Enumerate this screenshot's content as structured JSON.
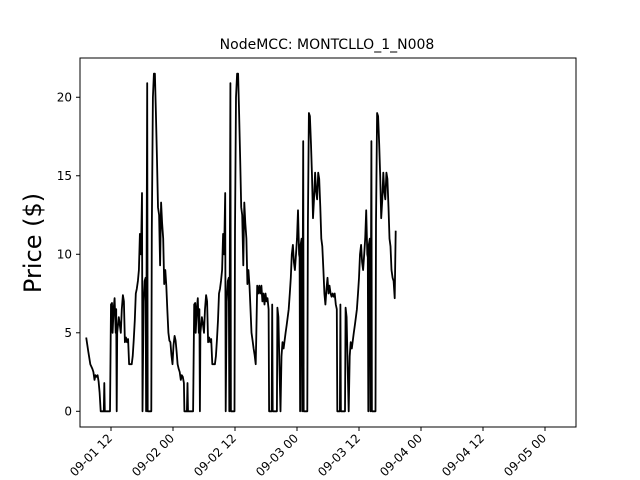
{
  "chart_data": {
    "type": "line",
    "title": "NodeMCC: MONTCLLO_1_N008",
    "xlabel": "",
    "ylabel": "Price ($)",
    "grid": false,
    "legend": "none",
    "line_color": "#000000",
    "xlim": [
      -6,
      90
    ],
    "ylim": [
      -1,
      22.5
    ],
    "x_ticks": [
      {
        "x": 0,
        "label": "09-01 12"
      },
      {
        "x": 12,
        "label": "09-02 00"
      },
      {
        "x": 24,
        "label": "09-02 12"
      },
      {
        "x": 36,
        "label": "09-03 00"
      },
      {
        "x": 48,
        "label": "09-03 12"
      },
      {
        "x": 60,
        "label": "09-04 00"
      },
      {
        "x": 72,
        "label": "09-04 12"
      },
      {
        "x": 84,
        "label": "09-05 00"
      }
    ],
    "y_ticks": [
      0,
      5,
      10,
      15,
      20
    ],
    "series": [
      {
        "points": [
          [
            -4.8,
            4.7
          ],
          [
            -4.4,
            3.8
          ],
          [
            -4.0,
            3.0
          ],
          [
            -3.6,
            2.7
          ],
          [
            -3.4,
            2.5
          ],
          [
            -3.2,
            2.0
          ],
          [
            -3.0,
            2.3
          ],
          [
            -2.8,
            2.2
          ],
          [
            -2.6,
            2.3
          ],
          [
            -2.4,
            1.9
          ],
          [
            -2.2,
            1.2
          ],
          [
            -2.0,
            0.0
          ],
          [
            -1.4,
            0.0
          ],
          [
            -1.3,
            1.8
          ],
          [
            -1.2,
            0.0
          ],
          [
            -0.2,
            0.0
          ],
          [
            0.0,
            6.8
          ],
          [
            0.2,
            6.9
          ],
          [
            0.3,
            5.0
          ],
          [
            0.5,
            6.5
          ],
          [
            0.7,
            7.2
          ],
          [
            0.9,
            5.0
          ],
          [
            1.0,
            6.5
          ],
          [
            1.1,
            0.0
          ],
          [
            1.2,
            5.0
          ],
          [
            1.5,
            6.0
          ],
          [
            1.7,
            5.5
          ],
          [
            1.9,
            5.0
          ],
          [
            2.1,
            6.5
          ],
          [
            2.3,
            7.4
          ],
          [
            2.5,
            7.0
          ],
          [
            2.7,
            4.4
          ],
          [
            2.9,
            4.7
          ],
          [
            3.1,
            4.4
          ],
          [
            3.3,
            4.6
          ],
          [
            3.5,
            3.0
          ],
          [
            4.0,
            3.0
          ],
          [
            4.2,
            3.5
          ],
          [
            4.4,
            4.5
          ],
          [
            4.6,
            5.8
          ],
          [
            4.8,
            7.5
          ],
          [
            5.0,
            7.8
          ],
          [
            5.2,
            8.3
          ],
          [
            5.4,
            9.0
          ],
          [
            5.6,
            11.3
          ],
          [
            5.8,
            10.0
          ],
          [
            6.0,
            13.9
          ],
          [
            6.1,
            0.0
          ],
          [
            6.3,
            7.0
          ],
          [
            6.5,
            8.3
          ],
          [
            6.7,
            8.5
          ],
          [
            6.8,
            0.0
          ],
          [
            7.0,
            20.9
          ],
          [
            7.1,
            0.0
          ],
          [
            7.8,
            0.0
          ],
          [
            7.9,
            11.5
          ],
          [
            8.1,
            20.0
          ],
          [
            8.3,
            21.5
          ],
          [
            8.5,
            21.5
          ],
          [
            8.7,
            19.0
          ],
          [
            8.9,
            16.0
          ],
          [
            9.1,
            13.0
          ],
          [
            9.3,
            12.5
          ],
          [
            9.5,
            9.3
          ],
          [
            9.7,
            13.3
          ],
          [
            9.9,
            12.0
          ],
          [
            10.1,
            11.0
          ],
          [
            10.3,
            8.1
          ],
          [
            10.5,
            9.0
          ],
          [
            10.7,
            8.0
          ],
          [
            10.9,
            6.5
          ],
          [
            11.1,
            5.0
          ],
          [
            11.3,
            4.5
          ],
          [
            11.5,
            4.4
          ],
          [
            11.7,
            3.6
          ],
          [
            11.9,
            3.0
          ],
          [
            12.1,
            4.2
          ],
          [
            12.3,
            4.8
          ],
          [
            12.5,
            4.5
          ],
          [
            12.7,
            3.8
          ],
          [
            12.9,
            3.0
          ],
          [
            13.1,
            2.7
          ],
          [
            13.3,
            2.5
          ],
          [
            13.5,
            2.0
          ],
          [
            13.7,
            2.3
          ],
          [
            13.9,
            2.2
          ],
          [
            14.1,
            1.8
          ],
          [
            14.2,
            0.0
          ],
          [
            14.7,
            0.0
          ],
          [
            14.8,
            1.8
          ],
          [
            14.9,
            0.0
          ],
          [
            15.9,
            0.0
          ],
          [
            16.1,
            6.8
          ],
          [
            16.3,
            6.9
          ],
          [
            16.4,
            5.0
          ],
          [
            16.6,
            6.5
          ],
          [
            16.8,
            7.2
          ],
          [
            17.0,
            5.0
          ],
          [
            17.1,
            6.5
          ],
          [
            17.2,
            0.0
          ],
          [
            17.3,
            5.0
          ],
          [
            17.6,
            6.0
          ],
          [
            17.8,
            5.5
          ],
          [
            18.0,
            5.0
          ],
          [
            18.2,
            6.5
          ],
          [
            18.4,
            7.4
          ],
          [
            18.6,
            7.0
          ],
          [
            18.8,
            4.4
          ],
          [
            19.0,
            4.7
          ],
          [
            19.2,
            4.4
          ],
          [
            19.4,
            4.6
          ],
          [
            19.6,
            3.0
          ],
          [
            20.1,
            3.0
          ],
          [
            20.3,
            3.5
          ],
          [
            20.5,
            4.5
          ],
          [
            20.7,
            5.8
          ],
          [
            20.9,
            7.5
          ],
          [
            21.1,
            7.8
          ],
          [
            21.3,
            8.3
          ],
          [
            21.5,
            9.0
          ],
          [
            21.7,
            11.3
          ],
          [
            21.9,
            10.0
          ],
          [
            22.1,
            13.9
          ],
          [
            22.2,
            0.0
          ],
          [
            22.4,
            7.0
          ],
          [
            22.6,
            8.3
          ],
          [
            22.8,
            8.5
          ],
          [
            22.9,
            0.0
          ],
          [
            23.1,
            20.9
          ],
          [
            23.2,
            0.0
          ],
          [
            23.9,
            0.0
          ],
          [
            24.0,
            11.5
          ],
          [
            24.2,
            20.0
          ],
          [
            24.4,
            21.5
          ],
          [
            24.6,
            21.5
          ],
          [
            24.8,
            19.0
          ],
          [
            25.0,
            16.0
          ],
          [
            25.2,
            13.0
          ],
          [
            25.4,
            12.5
          ],
          [
            25.6,
            9.3
          ],
          [
            25.8,
            13.3
          ],
          [
            26.0,
            12.0
          ],
          [
            26.2,
            11.0
          ],
          [
            26.4,
            8.1
          ],
          [
            26.6,
            9.0
          ],
          [
            26.8,
            8.0
          ],
          [
            27.0,
            6.5
          ],
          [
            27.2,
            5.0
          ],
          [
            27.4,
            4.5
          ],
          [
            27.6,
            4.0
          ],
          [
            27.8,
            3.6
          ],
          [
            28.0,
            3.0
          ],
          [
            28.1,
            4.5
          ],
          [
            28.3,
            8.0
          ],
          [
            28.5,
            7.5
          ],
          [
            28.7,
            8.0
          ],
          [
            28.9,
            7.5
          ],
          [
            29.1,
            8.0
          ],
          [
            29.3,
            7.0
          ],
          [
            29.5,
            7.5
          ],
          [
            29.7,
            6.8
          ],
          [
            29.9,
            7.5
          ],
          [
            30.1,
            7.0
          ],
          [
            30.3,
            7.2
          ],
          [
            30.5,
            6.5
          ],
          [
            30.6,
            0.0
          ],
          [
            31.1,
            0.0
          ],
          [
            31.2,
            6.8
          ],
          [
            31.3,
            0.0
          ],
          [
            32.1,
            0.0
          ],
          [
            32.2,
            6.6
          ],
          [
            32.4,
            6.0
          ],
          [
            32.6,
            3.0
          ],
          [
            32.8,
            0.0
          ],
          [
            33.0,
            3.5
          ],
          [
            33.2,
            4.4
          ],
          [
            33.4,
            4.0
          ],
          [
            33.6,
            4.5
          ],
          [
            33.8,
            5.0
          ],
          [
            34.0,
            5.5
          ],
          [
            34.2,
            6.0
          ],
          [
            34.4,
            6.5
          ],
          [
            34.6,
            7.5
          ],
          [
            34.8,
            8.5
          ],
          [
            35.0,
            10.0
          ],
          [
            35.2,
            10.6
          ],
          [
            35.4,
            9.5
          ],
          [
            35.6,
            9.0
          ],
          [
            35.8,
            10.0
          ],
          [
            36.0,
            11.0
          ],
          [
            36.2,
            12.8
          ],
          [
            36.4,
            10.0
          ],
          [
            36.5,
            9.8
          ],
          [
            36.6,
            0.0
          ],
          [
            36.7,
            10.6
          ],
          [
            36.9,
            11.0
          ],
          [
            37.0,
            0.0
          ],
          [
            37.2,
            17.2
          ],
          [
            37.3,
            0.0
          ],
          [
            38.0,
            0.0
          ],
          [
            38.1,
            12.0
          ],
          [
            38.3,
            19.0
          ],
          [
            38.5,
            18.8
          ],
          [
            38.7,
            17.0
          ],
          [
            38.9,
            15.0
          ],
          [
            39.1,
            12.3
          ],
          [
            39.3,
            13.5
          ],
          [
            39.5,
            15.2
          ],
          [
            39.7,
            14.0
          ],
          [
            39.9,
            13.5
          ],
          [
            40.1,
            15.2
          ],
          [
            40.3,
            14.8
          ],
          [
            40.5,
            13.0
          ],
          [
            40.7,
            11.0
          ],
          [
            40.9,
            10.5
          ],
          [
            41.1,
            9.0
          ],
          [
            41.3,
            7.5
          ],
          [
            41.5,
            6.8
          ],
          [
            41.7,
            7.8
          ],
          [
            41.9,
            8.5
          ],
          [
            42.1,
            7.5
          ],
          [
            42.3,
            8.0
          ],
          [
            42.5,
            7.5
          ],
          [
            42.7,
            7.3
          ],
          [
            42.9,
            7.5
          ],
          [
            43.1,
            7.3
          ],
          [
            43.3,
            7.5
          ],
          [
            43.5,
            6.8
          ],
          [
            43.7,
            6.5
          ],
          [
            43.8,
            0.0
          ],
          [
            44.3,
            0.0
          ],
          [
            44.4,
            6.8
          ],
          [
            44.5,
            0.0
          ],
          [
            45.3,
            0.0
          ],
          [
            45.4,
            6.6
          ],
          [
            45.6,
            6.0
          ],
          [
            45.8,
            3.0
          ],
          [
            46.0,
            0.0
          ],
          [
            46.2,
            3.5
          ],
          [
            46.4,
            4.4
          ],
          [
            46.6,
            4.0
          ],
          [
            46.8,
            4.5
          ],
          [
            47.0,
            5.0
          ],
          [
            47.2,
            5.5
          ],
          [
            47.4,
            6.0
          ],
          [
            47.6,
            6.5
          ],
          [
            47.8,
            7.5
          ],
          [
            48.0,
            8.5
          ],
          [
            48.2,
            10.0
          ],
          [
            48.4,
            10.6
          ],
          [
            48.6,
            9.5
          ],
          [
            48.8,
            9.0
          ],
          [
            49.0,
            10.0
          ],
          [
            49.2,
            11.0
          ],
          [
            49.4,
            12.8
          ],
          [
            49.6,
            10.0
          ],
          [
            49.7,
            9.8
          ],
          [
            49.8,
            0.0
          ],
          [
            49.9,
            10.6
          ],
          [
            50.1,
            11.0
          ],
          [
            50.2,
            0.0
          ],
          [
            50.4,
            17.2
          ],
          [
            50.5,
            0.0
          ],
          [
            51.2,
            0.0
          ],
          [
            51.3,
            12.0
          ],
          [
            51.5,
            19.0
          ],
          [
            51.7,
            18.8
          ],
          [
            51.9,
            17.0
          ],
          [
            52.1,
            15.0
          ],
          [
            52.3,
            12.3
          ],
          [
            52.5,
            13.5
          ],
          [
            52.7,
            15.2
          ],
          [
            52.9,
            14.0
          ],
          [
            53.1,
            13.5
          ],
          [
            53.3,
            15.2
          ],
          [
            53.5,
            14.8
          ],
          [
            53.7,
            13.0
          ],
          [
            53.9,
            11.0
          ],
          [
            54.1,
            10.5
          ],
          [
            54.3,
            9.0
          ],
          [
            54.5,
            8.5
          ],
          [
            54.7,
            8.3
          ],
          [
            54.9,
            7.2
          ],
          [
            55.1,
            11.5
          ]
        ]
      }
    ]
  }
}
